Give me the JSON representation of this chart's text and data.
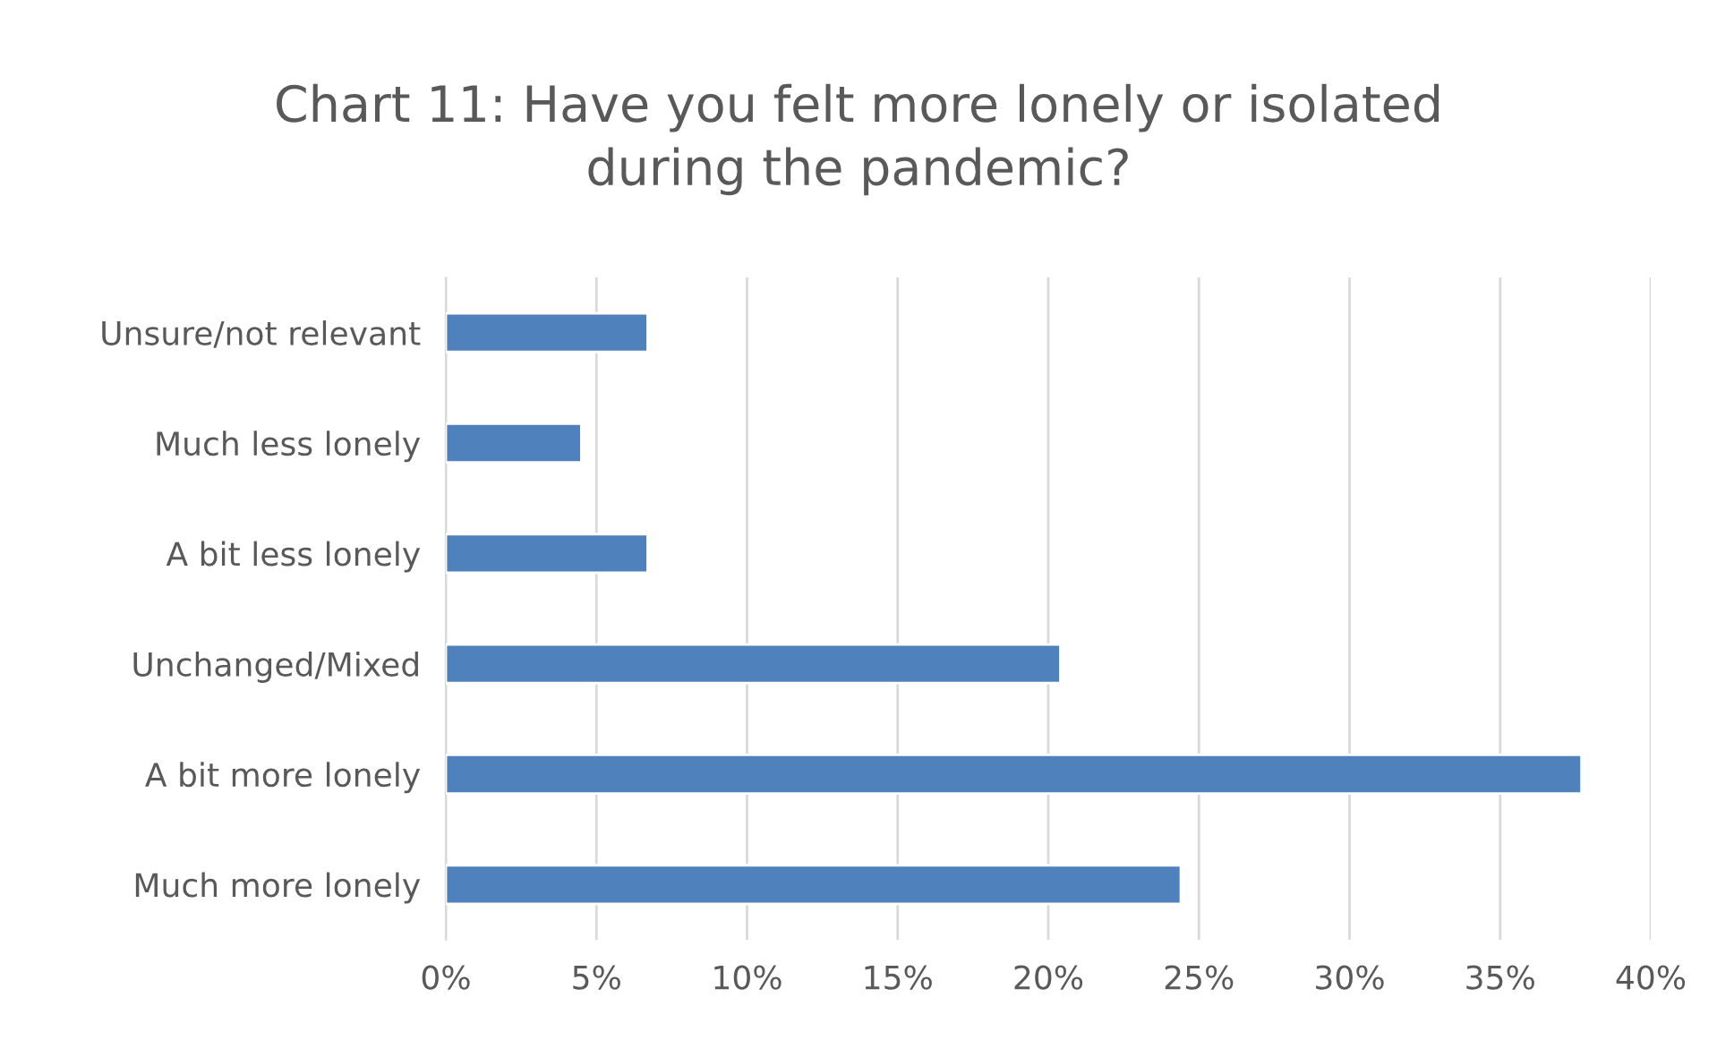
{
  "chart_data": {
    "type": "bar",
    "orientation": "horizontal",
    "title": "Chart 11: Have you felt more lonely or isolated\nduring the pandemic?",
    "categories": [
      "Unsure/not relevant",
      "Much less lonely",
      "A bit less lonely",
      "Unchanged/Mixed",
      "A bit more lonely",
      "Much more lonely"
    ],
    "values": [
      6.7,
      4.5,
      6.7,
      20.4,
      37.7,
      24.4
    ],
    "color": "#4f81bd",
    "xlim": [
      0,
      40
    ],
    "xticks": [
      {
        "value": 0,
        "label": "0%"
      },
      {
        "value": 5,
        "label": "5%"
      },
      {
        "value": 10,
        "label": "10%"
      },
      {
        "value": 15,
        "label": "15%"
      },
      {
        "value": 20,
        "label": "20%"
      },
      {
        "value": 25,
        "label": "25%"
      },
      {
        "value": 30,
        "label": "30%"
      },
      {
        "value": 35,
        "label": "35%"
      },
      {
        "value": 40,
        "label": "40%"
      }
    ],
    "grid": "x",
    "legend": false
  }
}
